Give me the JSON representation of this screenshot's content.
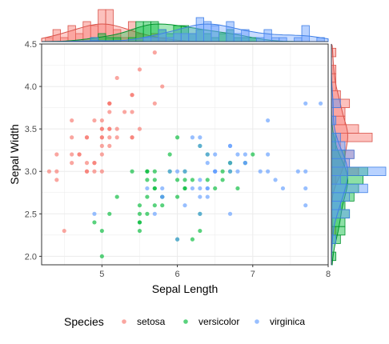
{
  "chart_data": {
    "type": "scatter",
    "xlabel": "Sepal Length",
    "ylabel": "Sepal Width",
    "xlim": [
      4.2,
      8.0
    ],
    "ylim": [
      1.9,
      4.5
    ],
    "x_ticks": [
      5,
      6,
      7,
      8
    ],
    "y_ticks": [
      2.0,
      2.5,
      3.0,
      3.5,
      4.0,
      4.5
    ],
    "x_tick_labels": [
      "5",
      "6",
      "7",
      "8"
    ],
    "y_tick_labels": [
      "2.0",
      "2.5",
      "3.0",
      "3.5",
      "4.0",
      "4.5"
    ],
    "grid": true,
    "legend_position": "bottom",
    "legend": {
      "title": "Species",
      "items": [
        {
          "label": "setosa",
          "color": "#F8766D"
        },
        {
          "label": "versicolor",
          "color": "#00BA38"
        },
        {
          "label": "virginica",
          "color": "#619CFF"
        }
      ]
    },
    "marginal": {
      "top": "histogram + density of Sepal Length",
      "right": "histogram + density of Sepal Width"
    },
    "series": [
      {
        "name": "setosa",
        "color": "#F8766D",
        "points": [
          [
            5.1,
            3.5
          ],
          [
            4.9,
            3.0
          ],
          [
            4.7,
            3.2
          ],
          [
            4.6,
            3.1
          ],
          [
            5.0,
            3.6
          ],
          [
            5.4,
            3.9
          ],
          [
            4.6,
            3.4
          ],
          [
            5.0,
            3.4
          ],
          [
            4.4,
            2.9
          ],
          [
            4.9,
            3.1
          ],
          [
            5.4,
            3.7
          ],
          [
            4.8,
            3.4
          ],
          [
            4.8,
            3.0
          ],
          [
            4.3,
            3.0
          ],
          [
            5.8,
            4.0
          ],
          [
            5.7,
            4.4
          ],
          [
            5.4,
            3.9
          ],
          [
            5.1,
            3.5
          ],
          [
            5.7,
            3.8
          ],
          [
            5.1,
            3.8
          ],
          [
            5.4,
            3.4
          ],
          [
            5.1,
            3.7
          ],
          [
            4.6,
            3.6
          ],
          [
            5.1,
            3.3
          ],
          [
            4.8,
            3.4
          ],
          [
            5.0,
            3.0
          ],
          [
            5.0,
            3.4
          ],
          [
            5.2,
            3.5
          ],
          [
            5.2,
            3.4
          ],
          [
            4.7,
            3.2
          ],
          [
            4.8,
            3.1
          ],
          [
            5.4,
            3.4
          ],
          [
            5.2,
            4.1
          ],
          [
            5.5,
            4.2
          ],
          [
            4.9,
            3.1
          ],
          [
            5.0,
            3.2
          ],
          [
            5.5,
            3.5
          ],
          [
            4.9,
            3.6
          ],
          [
            4.4,
            3.0
          ],
          [
            5.1,
            3.4
          ],
          [
            5.0,
            3.5
          ],
          [
            4.5,
            2.3
          ],
          [
            4.4,
            3.2
          ],
          [
            5.0,
            3.5
          ],
          [
            5.1,
            3.8
          ],
          [
            4.8,
            3.0
          ],
          [
            5.1,
            3.8
          ],
          [
            4.6,
            3.2
          ],
          [
            5.3,
            3.7
          ],
          [
            5.0,
            3.3
          ]
        ]
      },
      {
        "name": "versicolor",
        "color": "#00BA38",
        "points": [
          [
            7.0,
            3.2
          ],
          [
            6.4,
            3.2
          ],
          [
            6.9,
            3.1
          ],
          [
            5.5,
            2.3
          ],
          [
            6.5,
            2.8
          ],
          [
            5.7,
            2.8
          ],
          [
            6.3,
            3.3
          ],
          [
            4.9,
            2.4
          ],
          [
            6.6,
            2.9
          ],
          [
            5.2,
            2.7
          ],
          [
            5.0,
            2.0
          ],
          [
            5.9,
            3.0
          ],
          [
            6.0,
            2.2
          ],
          [
            6.1,
            2.9
          ],
          [
            5.6,
            2.9
          ],
          [
            6.7,
            3.1
          ],
          [
            5.6,
            3.0
          ],
          [
            5.8,
            2.7
          ],
          [
            6.2,
            2.2
          ],
          [
            5.6,
            2.5
          ],
          [
            5.9,
            3.2
          ],
          [
            6.1,
            2.8
          ],
          [
            6.3,
            2.5
          ],
          [
            6.1,
            2.8
          ],
          [
            6.4,
            2.9
          ],
          [
            6.6,
            3.0
          ],
          [
            6.8,
            2.8
          ],
          [
            6.7,
            3.0
          ],
          [
            6.0,
            2.9
          ],
          [
            5.7,
            2.6
          ],
          [
            5.5,
            2.4
          ],
          [
            5.5,
            2.4
          ],
          [
            5.8,
            2.7
          ],
          [
            6.0,
            2.7
          ],
          [
            5.4,
            3.0
          ],
          [
            6.0,
            3.4
          ],
          [
            6.7,
            3.1
          ],
          [
            6.3,
            2.3
          ],
          [
            5.6,
            3.0
          ],
          [
            5.5,
            2.5
          ],
          [
            5.5,
            2.6
          ],
          [
            6.1,
            3.0
          ],
          [
            5.8,
            2.6
          ],
          [
            5.0,
            2.3
          ],
          [
            5.6,
            2.7
          ],
          [
            5.7,
            3.0
          ],
          [
            5.7,
            2.9
          ],
          [
            6.2,
            2.9
          ],
          [
            5.1,
            2.5
          ],
          [
            5.7,
            2.8
          ]
        ]
      },
      {
        "name": "virginica",
        "color": "#619CFF",
        "points": [
          [
            6.3,
            3.3
          ],
          [
            5.8,
            2.7
          ],
          [
            7.1,
            3.0
          ],
          [
            6.3,
            2.9
          ],
          [
            6.5,
            3.0
          ],
          [
            7.6,
            3.0
          ],
          [
            4.9,
            2.5
          ],
          [
            7.3,
            2.9
          ],
          [
            6.7,
            2.5
          ],
          [
            7.2,
            3.6
          ],
          [
            6.5,
            3.2
          ],
          [
            6.4,
            2.7
          ],
          [
            6.8,
            3.0
          ],
          [
            5.7,
            2.5
          ],
          [
            5.8,
            2.8
          ],
          [
            6.4,
            3.2
          ],
          [
            6.5,
            3.0
          ],
          [
            7.7,
            3.8
          ],
          [
            7.7,
            2.6
          ],
          [
            6.0,
            2.2
          ],
          [
            6.9,
            3.2
          ],
          [
            5.6,
            2.8
          ],
          [
            7.7,
            2.8
          ],
          [
            6.3,
            2.7
          ],
          [
            6.7,
            3.3
          ],
          [
            7.2,
            3.2
          ],
          [
            6.2,
            2.8
          ],
          [
            6.1,
            3.0
          ],
          [
            6.4,
            2.8
          ],
          [
            7.2,
            3.0
          ],
          [
            7.4,
            2.8
          ],
          [
            7.9,
            3.8
          ],
          [
            6.4,
            2.8
          ],
          [
            6.3,
            2.8
          ],
          [
            6.1,
            2.6
          ],
          [
            7.7,
            3.0
          ],
          [
            6.3,
            3.4
          ],
          [
            6.4,
            3.1
          ],
          [
            6.0,
            3.0
          ],
          [
            6.9,
            3.1
          ],
          [
            6.7,
            3.1
          ],
          [
            6.9,
            3.1
          ],
          [
            5.8,
            2.7
          ],
          [
            6.8,
            3.2
          ],
          [
            6.7,
            3.3
          ],
          [
            6.7,
            3.0
          ],
          [
            6.3,
            2.5
          ],
          [
            6.5,
            3.0
          ],
          [
            6.2,
            3.4
          ],
          [
            5.9,
            3.0
          ]
        ]
      }
    ]
  }
}
